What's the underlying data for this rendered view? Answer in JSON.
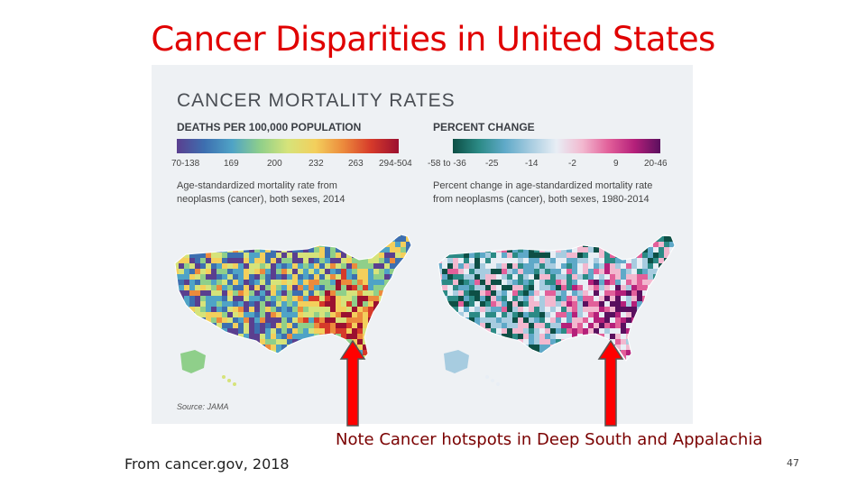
{
  "slide": {
    "title": "Cancer Disparities in United States",
    "note": "Note Cancer hotspots in Deep South and Appalachia",
    "credit": "From cancer.gov, 2018",
    "page_number": "47"
  },
  "figure": {
    "title": "CANCER MORTALITY RATES",
    "source": "Source: JAMA",
    "left_legend": {
      "heading": "DEATHS PER 100,000 POPULATION",
      "ticks": [
        "70-138",
        "169",
        "200",
        "232",
        "263",
        "294-504"
      ],
      "description_line1": "Age-standardized mortality rate from",
      "description_line2": "neoplasms (cancer), both sexes, 2014",
      "colors": [
        "#5a3f8f",
        "#3d6fb0",
        "#4fa3c6",
        "#8fcf8a",
        "#d6e37a",
        "#f3cf5c",
        "#ec8a3c",
        "#d63a2a",
        "#9b1030"
      ]
    },
    "right_legend": {
      "heading": "PERCENT CHANGE",
      "ticks": [
        "-58 to -36",
        "-25",
        "-14",
        "-2",
        "9",
        "20-46"
      ],
      "description_line1": "Percent change in age-standardized mortality rate",
      "description_line2": "from neoplasms (cancer), both sexes, 1980-2014",
      "colors": [
        "#0d4f45",
        "#2b8a85",
        "#5fa9c8",
        "#a7cce0",
        "#e8eef5",
        "#f2b8cf",
        "#e2609a",
        "#b5207a",
        "#5a0f5e"
      ]
    }
  },
  "colors": {
    "title_red": "#e00000",
    "note_text": "#7a0000",
    "arrow_red": "#ff0000",
    "arrow_outline": "#555555"
  }
}
